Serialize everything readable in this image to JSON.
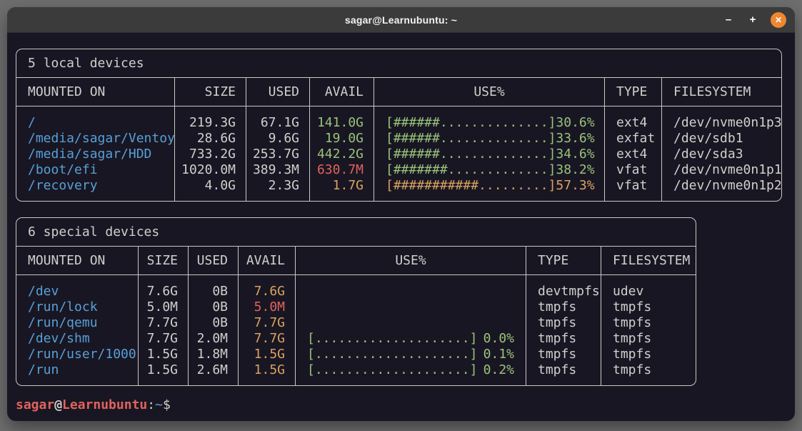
{
  "window": {
    "title": "sagar@Learnubuntu: ~",
    "controls": {
      "minimize": "–",
      "maximize": "+",
      "close": "✕"
    }
  },
  "colors": {
    "desktop": "#6e6e6e",
    "terminal_background": "#191623",
    "titlebar": "#3b3b3b",
    "close_button": "#ee8730",
    "foreground": "#d0cfcc",
    "border": "#c9c7c3",
    "blue": "#56a0d6",
    "green": "#98c379",
    "orange": "#d8a35f",
    "red": "#e0635c"
  },
  "tables": [
    {
      "title": "5 local devices",
      "headers": [
        "MOUNTED ON",
        "SIZE",
        "USED",
        "AVAIL",
        "USE%",
        "TYPE",
        "FILESYSTEM"
      ],
      "rows": [
        {
          "mount": "/",
          "size": "219.3G",
          "used": "67.1G",
          "avail": "141.0G",
          "avail_color": "green",
          "bar": "[######..............]",
          "pct": "30.6%",
          "use_color": "green",
          "type": "ext4",
          "fs": "/dev/nvme0n1p3"
        },
        {
          "mount": "/media/sagar/Ventoy",
          "size": "28.6G",
          "used": "9.6G",
          "avail": "19.0G",
          "avail_color": "green",
          "bar": "[######..............]",
          "pct": "33.6%",
          "use_color": "green",
          "type": "exfat",
          "fs": "/dev/sdb1"
        },
        {
          "mount": "/media/sagar/HDD",
          "size": "733.2G",
          "used": "253.7G",
          "avail": "442.2G",
          "avail_color": "green",
          "bar": "[######..............]",
          "pct": "34.6%",
          "use_color": "green",
          "type": "ext4",
          "fs": "/dev/sda3"
        },
        {
          "mount": "/boot/efi",
          "size": "1020.0M",
          "used": "389.3M",
          "avail": "630.7M",
          "avail_color": "red",
          "bar": "[#######.............]",
          "pct": "38.2%",
          "use_color": "green",
          "type": "vfat",
          "fs": "/dev/nvme0n1p1"
        },
        {
          "mount": "/recovery",
          "size": "4.0G",
          "used": "2.3G",
          "avail": "1.7G",
          "avail_color": "orange",
          "bar": "[###########.........]",
          "pct": "57.3%",
          "use_color": "orange",
          "type": "vfat",
          "fs": "/dev/nvme0n1p2"
        }
      ]
    },
    {
      "title": "6 special devices",
      "headers": [
        "MOUNTED ON",
        "SIZE",
        "USED",
        "AVAIL",
        "USE%",
        "TYPE",
        "FILESYSTEM"
      ],
      "rows": [
        {
          "mount": "/dev",
          "size": "7.6G",
          "used": "0B",
          "avail": "7.6G",
          "avail_color": "orange",
          "bar": "",
          "pct": "",
          "use_color": "green",
          "type": "devtmpfs",
          "fs": "udev"
        },
        {
          "mount": "/run/lock",
          "size": "5.0M",
          "used": "0B",
          "avail": "5.0M",
          "avail_color": "red",
          "bar": "",
          "pct": "",
          "use_color": "green",
          "type": "tmpfs",
          "fs": "tmpfs"
        },
        {
          "mount": "/run/qemu",
          "size": "7.7G",
          "used": "0B",
          "avail": "7.7G",
          "avail_color": "orange",
          "bar": "",
          "pct": "",
          "use_color": "green",
          "type": "tmpfs",
          "fs": "tmpfs"
        },
        {
          "mount": "/dev/shm",
          "size": "7.7G",
          "used": "2.0M",
          "avail": "7.7G",
          "avail_color": "orange",
          "bar": "[....................]",
          "pct": "0.0%",
          "use_color": "green",
          "type": "tmpfs",
          "fs": "tmpfs"
        },
        {
          "mount": "/run/user/1000",
          "size": "1.5G",
          "used": "1.8M",
          "avail": "1.5G",
          "avail_color": "orange",
          "bar": "[....................]",
          "pct": "0.1%",
          "use_color": "green",
          "type": "tmpfs",
          "fs": "tmpfs"
        },
        {
          "mount": "/run",
          "size": "1.5G",
          "used": "2.6M",
          "avail": "1.5G",
          "avail_color": "orange",
          "bar": "[....................]",
          "pct": "0.2%",
          "use_color": "green",
          "type": "tmpfs",
          "fs": "tmpfs"
        }
      ]
    }
  ],
  "prompt": {
    "user": "sagar",
    "at": "@",
    "host": "Learnubuntu",
    "separator": ":",
    "path": "~",
    "symbol": "$"
  }
}
